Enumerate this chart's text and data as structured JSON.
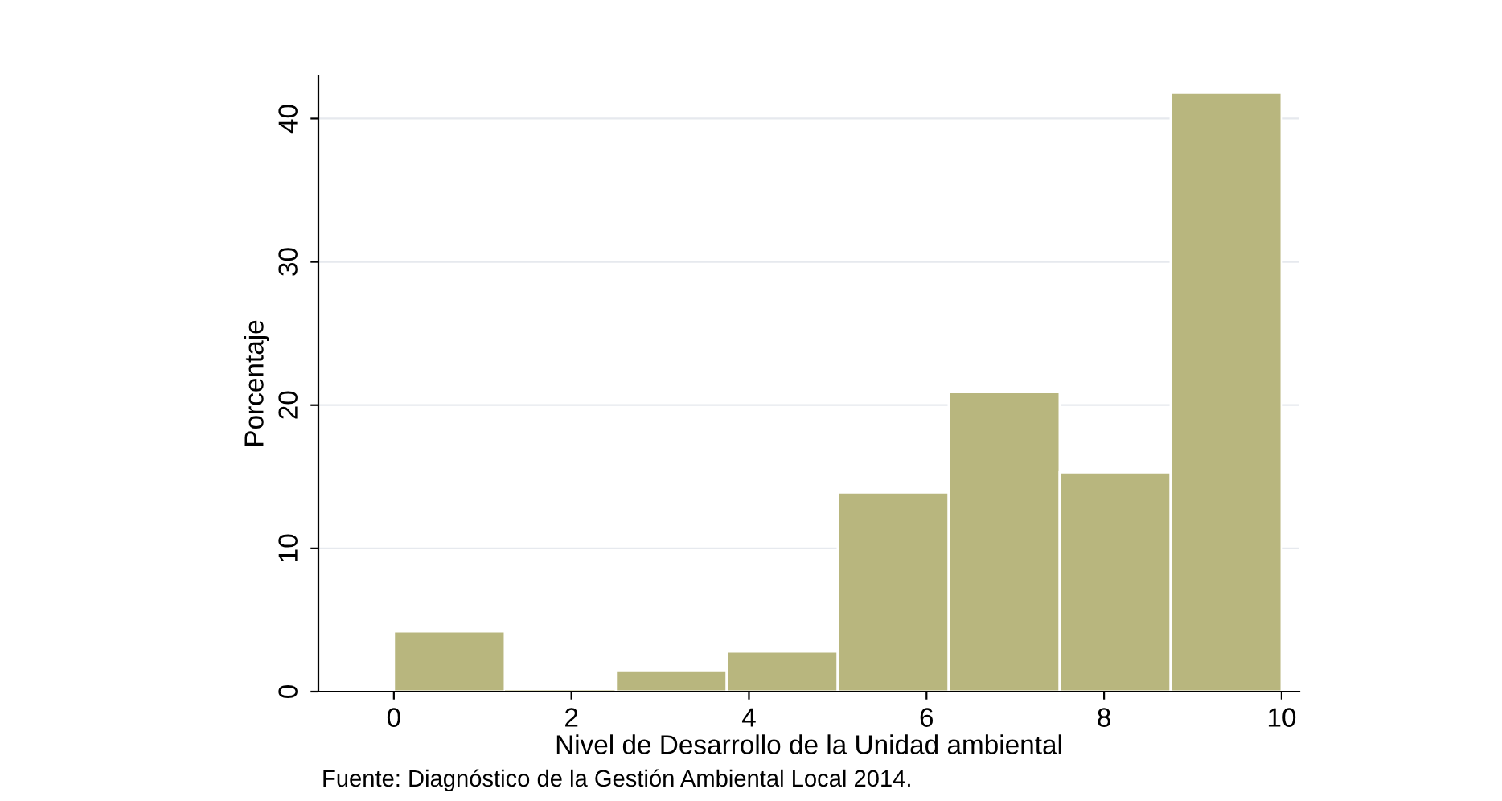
{
  "chart_data": {
    "type": "histogram",
    "bins": [
      0,
      1.25,
      2.5,
      3.75,
      5,
      6.25,
      7.5,
      8.75,
      10
    ],
    "values": [
      4.2,
      0,
      1.5,
      2.8,
      13.9,
      20.9,
      15.3,
      41.8
    ],
    "color": "#b8b67e",
    "xlabel": "Nivel de Desarrollo de la Unidad ambiental",
    "ylabel": "Porcentaje",
    "xlim": [
      -0.85,
      10.2
    ],
    "ylim": [
      0,
      43
    ],
    "xticks": [
      0,
      2,
      4,
      6,
      8,
      10
    ],
    "yticks": [
      0,
      10,
      20,
      30,
      40
    ],
    "grid": "y",
    "annotations": [
      "Fuente: Diagnóstico de la Gestión Ambiental Local 2014."
    ]
  }
}
